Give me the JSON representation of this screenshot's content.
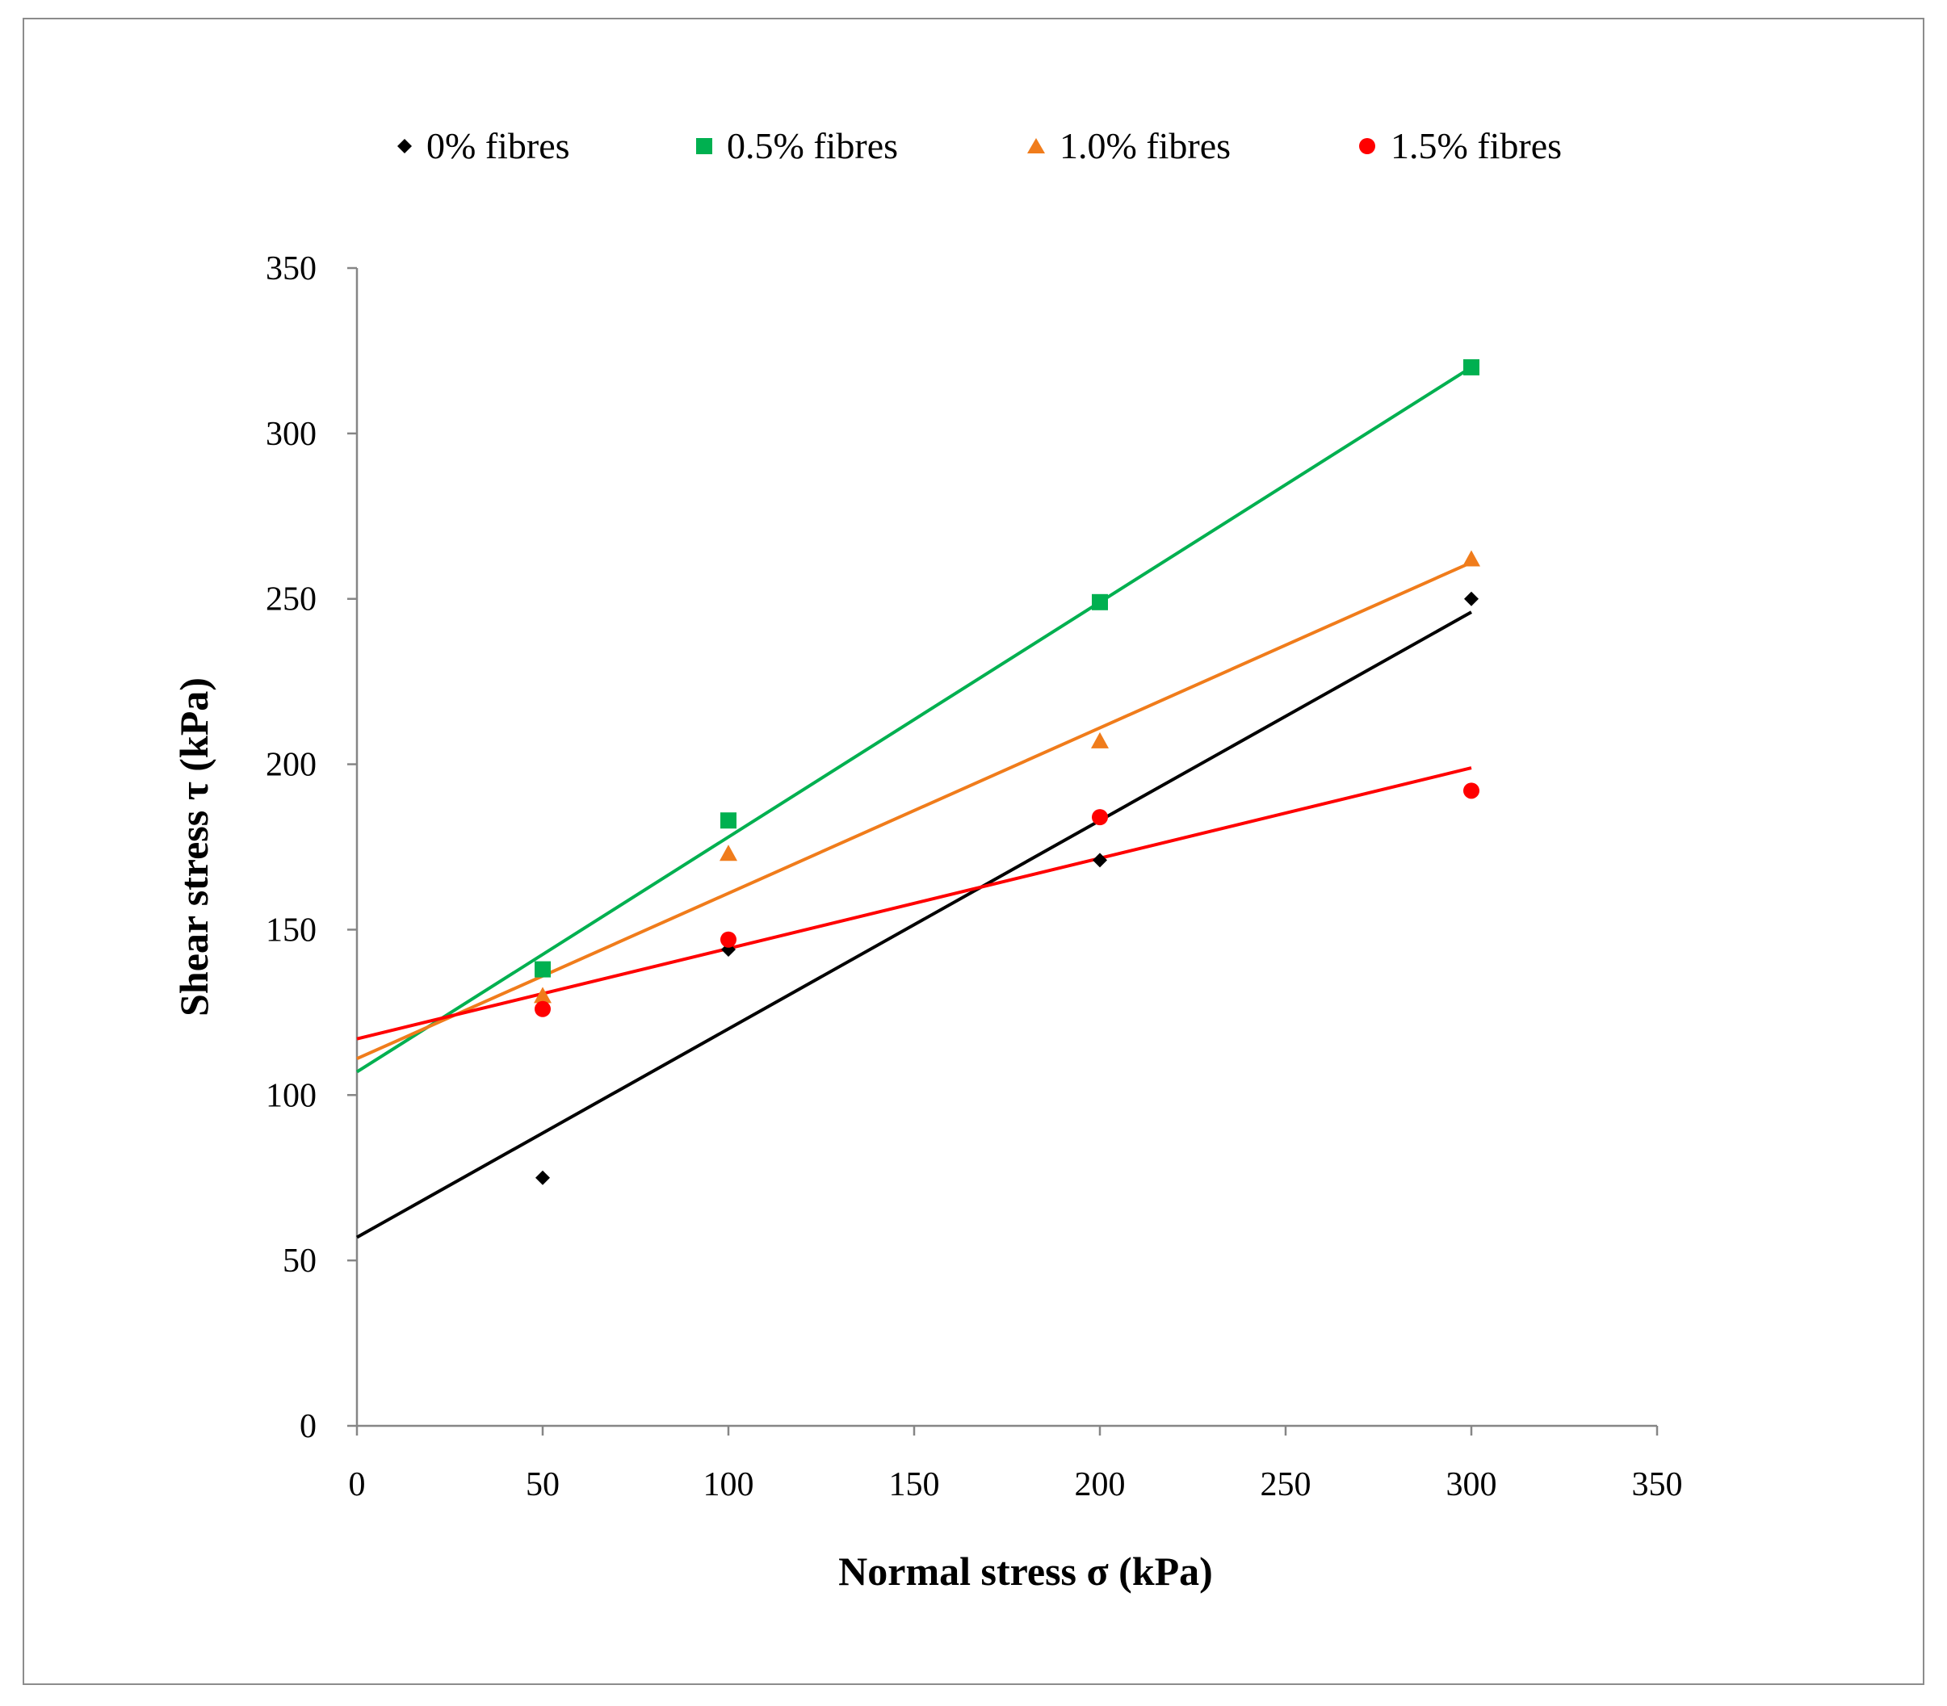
{
  "chart_data": {
    "type": "scatter",
    "title": "",
    "xlabel": "Normal stress σ (kPa)",
    "ylabel": "Shear stress τ (kPa)",
    "xlim": [
      0,
      350
    ],
    "ylim": [
      0,
      350
    ],
    "xticks": [
      "0",
      "50",
      "100",
      "150",
      "200",
      "250",
      "300",
      "350"
    ],
    "yticks": [
      "0",
      "50",
      "100",
      "150",
      "200",
      "250",
      "300",
      "350"
    ],
    "grid": false,
    "legend_position": "top",
    "series": [
      {
        "name": "0% fibres",
        "marker": "diamond",
        "color": "#000000",
        "x": [
          50,
          100,
          200,
          300
        ],
        "y": [
          75,
          144,
          171,
          250
        ],
        "fit": {
          "intercept": 57,
          "slope": 0.63
        }
      },
      {
        "name": "0.5% fibres",
        "marker": "square",
        "color": "#00b050",
        "x": [
          50,
          100,
          200,
          300
        ],
        "y": [
          138,
          183,
          249,
          320
        ],
        "fit": {
          "intercept": 107,
          "slope": 0.71
        }
      },
      {
        "name": "1.0% fibres",
        "marker": "triangle",
        "color": "#f07c1b",
        "x": [
          50,
          100,
          200,
          300
        ],
        "y": [
          130,
          173,
          207,
          262
        ],
        "fit": {
          "intercept": 111,
          "slope": 0.5
        }
      },
      {
        "name": "1.5% fibres",
        "marker": "circle",
        "color": "#ff0000",
        "x": [
          50,
          100,
          200,
          300
        ],
        "y": [
          126,
          147,
          184,
          192
        ],
        "fit": {
          "intercept": 117,
          "slope": 0.273
        }
      }
    ]
  }
}
